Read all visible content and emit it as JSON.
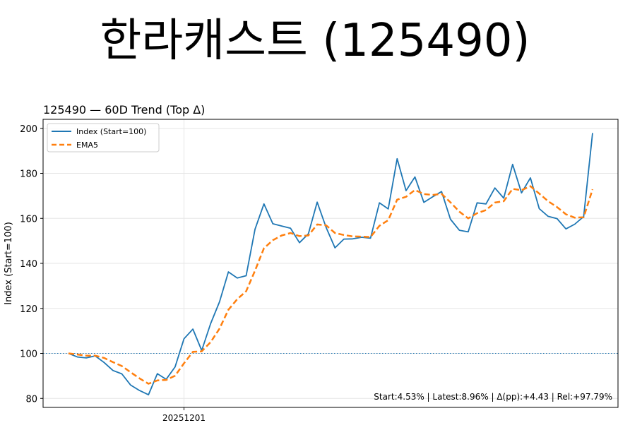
{
  "header": {
    "title": "한라캐스트 (125490)"
  },
  "chart_data": {
    "type": "line",
    "title": "125490 — 60D Trend (Top Δ)",
    "xlabel": "",
    "ylabel": "Index (Start=100)",
    "ylim": [
      76,
      204
    ],
    "yticks": [
      80,
      100,
      120,
      140,
      160,
      180,
      200
    ],
    "x_tick_labels": [
      {
        "index": 13,
        "label": "20251201"
      }
    ],
    "reference_line": {
      "y": 100,
      "style": "dotted",
      "color": "#1f77b4"
    },
    "grid": true,
    "legend": {
      "placement": "top-left",
      "entries": [
        "Index (Start=100)",
        "EMA5"
      ]
    },
    "annotation": "Start:4.53% | Latest:8.96% | Δ(pp):+4.43 | Rel:+97.79%",
    "series": [
      {
        "name": "Index (Start=100)",
        "color": "#1f77b4",
        "style": "solid",
        "values": [
          100,
          98.4,
          98.0,
          98.9,
          96.0,
          92.4,
          90.9,
          85.9,
          83.5,
          81.6,
          91.0,
          88.5,
          94.0,
          106.5,
          110.8,
          101.3,
          113.2,
          122.9,
          136.2,
          133.5,
          134.5,
          155.2,
          166.4,
          157.6,
          156.6,
          155.6,
          149.2,
          153.1,
          167.2,
          156.0,
          146.9,
          150.8,
          150.9,
          151.6,
          151.2,
          166.9,
          164.2,
          186.5,
          172.3,
          178.4,
          167.1,
          169.6,
          171.9,
          159.6,
          154.7,
          154.0,
          166.9,
          166.4,
          173.5,
          169.0,
          184.0,
          171.3,
          178.0,
          164.3,
          160.9,
          159.9,
          155.3,
          157.4,
          160.8,
          197.9
        ]
      },
      {
        "name": "EMA5",
        "color": "#ff7f0e",
        "style": "dashed",
        "values": [
          100,
          99.5,
          99.0,
          99.0,
          98.0,
          96.1,
          94.4,
          91.6,
          88.9,
          86.5,
          88.0,
          88.2,
          90.1,
          95.6,
          100.7,
          100.9,
          105.0,
          111.0,
          119.4,
          124.1,
          127.6,
          136.8,
          146.7,
          150.3,
          152.4,
          153.5,
          152.1,
          152.4,
          157.3,
          156.9,
          153.5,
          152.6,
          152.0,
          151.9,
          151.7,
          156.7,
          159.2,
          168.3,
          169.6,
          172.6,
          170.8,
          170.4,
          170.9,
          167.1,
          163.0,
          160.0,
          162.3,
          163.7,
          167.0,
          167.6,
          173.1,
          172.5,
          174.3,
          171.0,
          167.6,
          165.0,
          161.8,
          160.3,
          160.5,
          172.9
        ]
      }
    ]
  }
}
